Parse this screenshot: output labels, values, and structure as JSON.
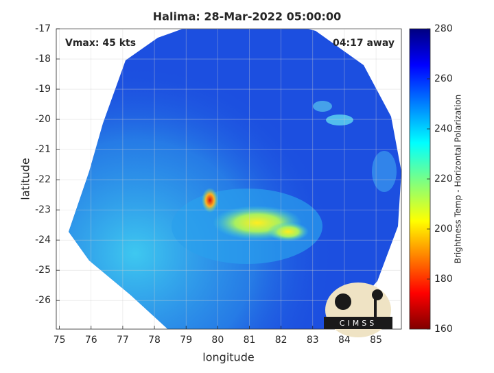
{
  "chart_data": {
    "type": "image",
    "title": "Halima: 28-Mar-2022 05:00:00",
    "xlabel": "longitude",
    "ylabel": "latitude",
    "xlim": [
      74.9,
      85.8
    ],
    "ylim": [
      -26.95,
      -17
    ],
    "xticks": [
      75,
      76,
      77,
      78,
      79,
      80,
      81,
      82,
      83,
      84,
      85
    ],
    "yticks": [
      -17,
      -18,
      -19,
      -20,
      -21,
      -22,
      -23,
      -24,
      -25,
      -26
    ],
    "grid": true,
    "annotations": [
      "Vmax: 45 kts",
      "04:17 away"
    ],
    "logo": "CIMSS",
    "colorbar": {
      "label": "Brightness Temp - Horizontal Polarization",
      "clim": [
        160,
        280
      ],
      "ticks": [
        160,
        180,
        200,
        220,
        240,
        260,
        280
      ],
      "colormap": "jet"
    }
  }
}
